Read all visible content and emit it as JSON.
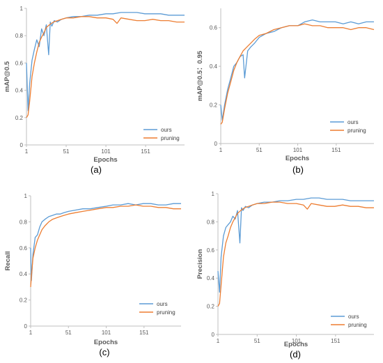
{
  "colors": {
    "ours": "#5b9bd5",
    "pruning": "#ed7d31"
  },
  "chart_data": [
    {
      "type": "line",
      "caption": "(a)",
      "xlabel": "Epochs",
      "ylabel": "mAP@0.5",
      "xlim": [
        1,
        200
      ],
      "ylim": [
        0,
        1
      ],
      "xticks": [
        1,
        51,
        101,
        151
      ],
      "xtick_labels": [
        "1",
        "51",
        "101",
        "151"
      ],
      "yticks": [
        0,
        0.2,
        0.4,
        0.6,
        0.8,
        1
      ],
      "ytick_labels": [
        "0",
        "0.2",
        "0.4",
        "0.6",
        "0.8",
        "1"
      ],
      "legend": "bottom-right",
      "series": [
        {
          "name": "ours",
          "color": "#5b9bd5",
          "x": [
            1,
            3,
            5,
            8,
            11,
            14,
            17,
            20,
            23,
            26,
            29,
            31,
            33,
            36,
            40,
            45,
            51,
            60,
            70,
            80,
            90,
            101,
            110,
            120,
            130,
            140,
            150,
            160,
            170,
            180,
            190,
            200
          ],
          "y": [
            0.6,
            0.25,
            0.45,
            0.62,
            0.7,
            0.77,
            0.72,
            0.85,
            0.8,
            0.88,
            0.66,
            0.9,
            0.87,
            0.91,
            0.9,
            0.92,
            0.93,
            0.94,
            0.94,
            0.95,
            0.95,
            0.96,
            0.96,
            0.97,
            0.97,
            0.97,
            0.96,
            0.96,
            0.96,
            0.95,
            0.95,
            0.95
          ]
        },
        {
          "name": "pruning",
          "color": "#ed7d31",
          "x": [
            1,
            3,
            5,
            8,
            11,
            14,
            17,
            20,
            23,
            26,
            30,
            35,
            40,
            45,
            51,
            60,
            70,
            80,
            90,
            101,
            110,
            115,
            120,
            130,
            140,
            150,
            160,
            170,
            180,
            190,
            200
          ],
          "y": [
            0.2,
            0.22,
            0.32,
            0.5,
            0.6,
            0.68,
            0.75,
            0.79,
            0.82,
            0.86,
            0.88,
            0.9,
            0.91,
            0.92,
            0.93,
            0.93,
            0.94,
            0.94,
            0.93,
            0.93,
            0.92,
            0.89,
            0.93,
            0.92,
            0.91,
            0.91,
            0.92,
            0.91,
            0.91,
            0.9,
            0.9
          ]
        }
      ]
    },
    {
      "type": "line",
      "caption": "(b)",
      "xlabel": "Epochs",
      "ylabel": "mAP@0.5：0.95",
      "xlim": [
        1,
        200
      ],
      "ylim": [
        0,
        0.7
      ],
      "xticks": [
        1,
        51,
        101,
        151
      ],
      "xtick_labels": [
        "1",
        "51",
        "101",
        "151"
      ],
      "yticks": [
        0,
        0.2,
        0.4,
        0.6
      ],
      "ytick_labels": [
        "0",
        "0.2",
        "0.4",
        "0.6"
      ],
      "legend": "bottom-right",
      "series": [
        {
          "name": "ours",
          "color": "#5b9bd5",
          "x": [
            1,
            3,
            6,
            10,
            14,
            18,
            22,
            26,
            30,
            32,
            36,
            40,
            45,
            51,
            60,
            70,
            80,
            90,
            101,
            110,
            120,
            130,
            140,
            150,
            160,
            170,
            180,
            190,
            200
          ],
          "y": [
            0.2,
            0.12,
            0.2,
            0.28,
            0.34,
            0.4,
            0.42,
            0.45,
            0.46,
            0.34,
            0.48,
            0.5,
            0.52,
            0.55,
            0.57,
            0.58,
            0.6,
            0.61,
            0.61,
            0.63,
            0.64,
            0.63,
            0.63,
            0.63,
            0.62,
            0.63,
            0.62,
            0.63,
            0.63
          ]
        },
        {
          "name": "pruning",
          "color": "#ed7d31",
          "x": [
            1,
            3,
            6,
            10,
            14,
            18,
            22,
            26,
            30,
            35,
            40,
            45,
            51,
            60,
            70,
            80,
            90,
            101,
            110,
            120,
            130,
            140,
            150,
            160,
            170,
            180,
            190,
            200
          ],
          "y": [
            0.1,
            0.11,
            0.18,
            0.26,
            0.32,
            0.38,
            0.42,
            0.45,
            0.48,
            0.5,
            0.52,
            0.54,
            0.56,
            0.57,
            0.59,
            0.6,
            0.61,
            0.61,
            0.62,
            0.61,
            0.61,
            0.6,
            0.6,
            0.6,
            0.59,
            0.6,
            0.6,
            0.59
          ]
        }
      ]
    },
    {
      "type": "line",
      "caption": "(c)",
      "xlabel": "Epochs",
      "ylabel": "Recall",
      "xlim": [
        1,
        200
      ],
      "ylim": [
        0,
        1
      ],
      "xticks": [
        1,
        51,
        101,
        151
      ],
      "xtick_labels": [
        "1",
        "51",
        "101",
        "151"
      ],
      "yticks": [
        0,
        0.2,
        0.4,
        0.6,
        0.8,
        1
      ],
      "ytick_labels": [
        "0",
        "0.2",
        "0.4",
        "0.6",
        "0.8",
        "1"
      ],
      "legend": "bottom-right",
      "series": [
        {
          "name": "ours",
          "color": "#5b9bd5",
          "x": [
            1,
            2,
            4,
            7,
            10,
            13,
            16,
            20,
            25,
            30,
            35,
            40,
            45,
            51,
            60,
            70,
            80,
            90,
            101,
            110,
            120,
            130,
            140,
            150,
            160,
            170,
            180,
            190,
            200
          ],
          "y": [
            0.6,
            0.35,
            0.55,
            0.68,
            0.7,
            0.76,
            0.8,
            0.82,
            0.84,
            0.85,
            0.86,
            0.86,
            0.87,
            0.88,
            0.89,
            0.9,
            0.9,
            0.91,
            0.92,
            0.93,
            0.93,
            0.94,
            0.93,
            0.94,
            0.94,
            0.93,
            0.93,
            0.94,
            0.94
          ]
        },
        {
          "name": "pruning",
          "color": "#ed7d31",
          "x": [
            1,
            2,
            4,
            7,
            10,
            13,
            16,
            20,
            25,
            30,
            35,
            40,
            45,
            51,
            60,
            70,
            80,
            90,
            101,
            110,
            120,
            130,
            140,
            150,
            160,
            170,
            180,
            190,
            200
          ],
          "y": [
            0.3,
            0.38,
            0.52,
            0.6,
            0.66,
            0.7,
            0.74,
            0.77,
            0.8,
            0.82,
            0.83,
            0.84,
            0.85,
            0.86,
            0.87,
            0.88,
            0.89,
            0.9,
            0.91,
            0.91,
            0.92,
            0.92,
            0.93,
            0.92,
            0.92,
            0.91,
            0.91,
            0.9,
            0.9
          ]
        }
      ]
    },
    {
      "type": "line",
      "caption": "(d)",
      "xlabel": "Epochs",
      "ylabel": "Precision",
      "xlim": [
        1,
        200
      ],
      "ylim": [
        0,
        1
      ],
      "xticks": [
        1,
        51,
        101,
        151
      ],
      "xtick_labels": [
        "1",
        "51",
        "101",
        "151"
      ],
      "yticks": [
        0,
        0.2,
        0.4,
        0.6,
        0.8,
        1
      ],
      "ytick_labels": [
        "0",
        "0.2",
        "0.4",
        "0.6",
        "0.8",
        "1"
      ],
      "legend": "bottom-right",
      "series": [
        {
          "name": "ours",
          "color": "#5b9bd5",
          "x": [
            1,
            3,
            5,
            8,
            11,
            14,
            17,
            20,
            23,
            26,
            29,
            31,
            33,
            36,
            40,
            45,
            51,
            60,
            70,
            80,
            90,
            101,
            110,
            120,
            130,
            140,
            150,
            160,
            170,
            180,
            190,
            200
          ],
          "y": [
            0.45,
            0.3,
            0.55,
            0.7,
            0.76,
            0.78,
            0.8,
            0.84,
            0.82,
            0.88,
            0.65,
            0.9,
            0.88,
            0.91,
            0.9,
            0.92,
            0.93,
            0.94,
            0.94,
            0.95,
            0.95,
            0.96,
            0.96,
            0.97,
            0.97,
            0.96,
            0.96,
            0.96,
            0.95,
            0.95,
            0.95,
            0.95
          ]
        },
        {
          "name": "pruning",
          "color": "#ed7d31",
          "x": [
            1,
            3,
            5,
            8,
            11,
            14,
            17,
            20,
            23,
            26,
            30,
            35,
            40,
            45,
            51,
            60,
            70,
            80,
            90,
            101,
            110,
            115,
            120,
            130,
            140,
            150,
            160,
            170,
            180,
            190,
            200
          ],
          "y": [
            0.2,
            0.22,
            0.35,
            0.55,
            0.65,
            0.7,
            0.76,
            0.8,
            0.83,
            0.86,
            0.88,
            0.9,
            0.91,
            0.92,
            0.93,
            0.93,
            0.94,
            0.94,
            0.93,
            0.93,
            0.92,
            0.89,
            0.93,
            0.92,
            0.91,
            0.91,
            0.92,
            0.91,
            0.91,
            0.9,
            0.9
          ]
        }
      ]
    }
  ]
}
